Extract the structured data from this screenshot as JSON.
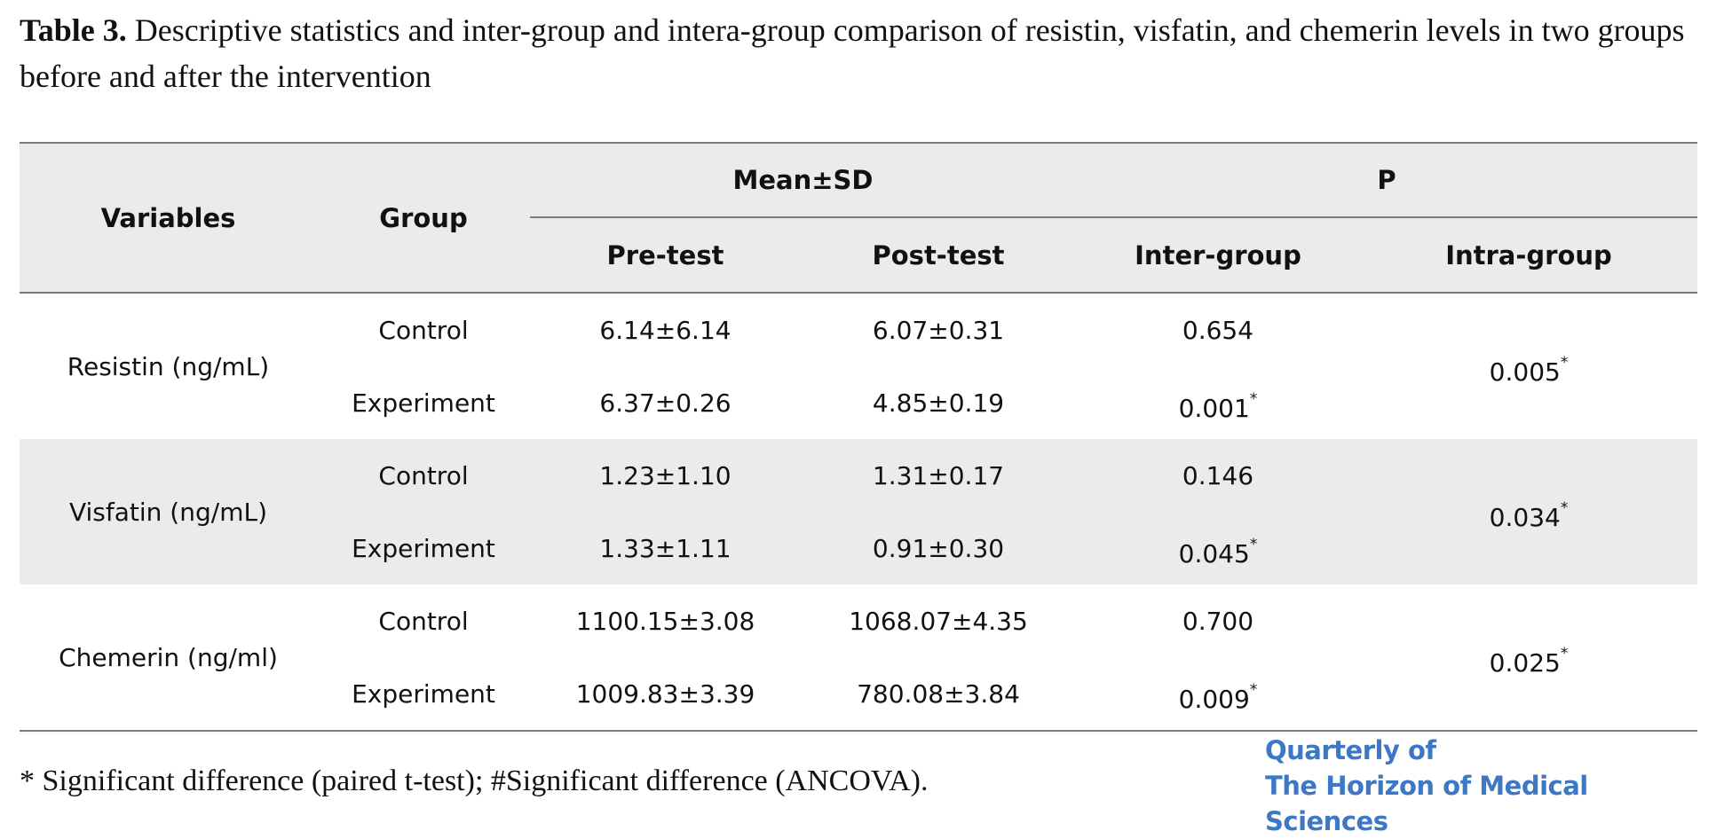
{
  "caption": {
    "label": "Table 3.",
    "text": " Descriptive statistics and inter-group and intera-group comparison of resistin, visfatin, and chemerin levels in two groups before and after the intervention"
  },
  "table": {
    "headers": {
      "variables": "Variables",
      "group": "Group",
      "mean_sd": "Mean±SD",
      "p": "P",
      "pre_test": "Pre-test",
      "post_test": "Post-test",
      "inter_group": "Inter-group",
      "intra_group": "Intra-group"
    },
    "rows": [
      {
        "variable": "Resistin (ng/mL)",
        "intra": "0.005",
        "control": {
          "group": "Control",
          "pre": "6.14±6.14",
          "post": "6.07±0.31",
          "inter": "0.654"
        },
        "experiment": {
          "group": "Experiment",
          "pre": "6.37±0.26",
          "post": "4.85±0.19",
          "inter": "0.001"
        }
      },
      {
        "variable": "Visfatin (ng/mL)",
        "intra": "0.034",
        "control": {
          "group": "Control",
          "pre": "1.23±1.10",
          "post": "1.31±0.17",
          "inter": "0.146"
        },
        "experiment": {
          "group": "Experiment",
          "pre": "1.33±1.11",
          "post": "0.91±0.30",
          "inter": "0.045"
        }
      },
      {
        "variable": "Chemerin (ng/ml)",
        "intra": "0.025",
        "control": {
          "group": "Control",
          "pre": "1100.15±3.08",
          "post": "1068.07±4.35",
          "inter": "0.700"
        },
        "experiment": {
          "group": "Experiment",
          "pre": "1009.83±3.39",
          "post": "780.08±3.84",
          "inter": "0.009"
        }
      }
    ],
    "star": "*"
  },
  "footnote": "* Significant difference (paired t-test); #Significant difference (ANCOVA).",
  "logo": {
    "line1": "Quarterly of",
    "line2": "The Horizon of Medical Sciences"
  }
}
